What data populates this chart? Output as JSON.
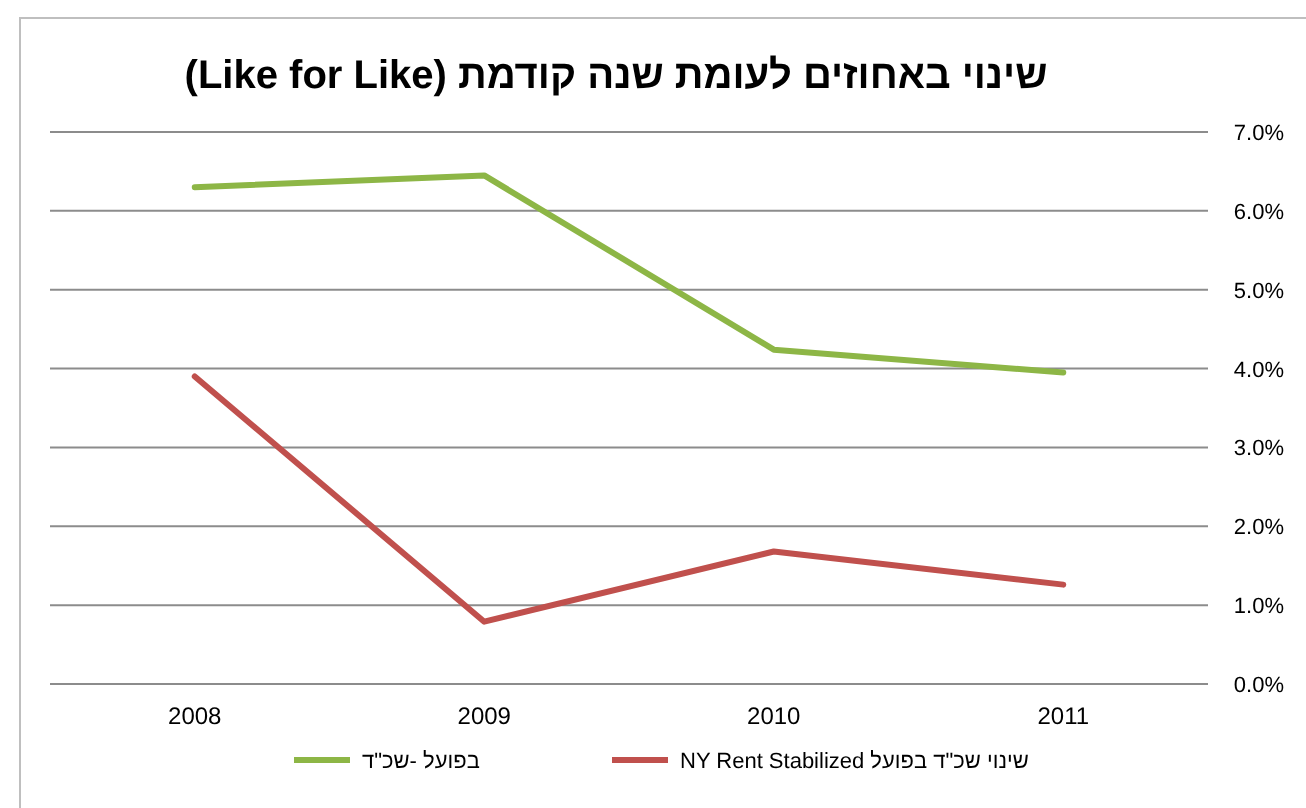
{
  "chart_data": {
    "type": "line",
    "title": "שינוי באחוזים לעומת שנה קודמת (Like for Like)",
    "categories": [
      "2008",
      "2009",
      "2010",
      "2011"
    ],
    "series": [
      {
        "name": "בפועל -שכ\"ד",
        "color": "#8db646",
        "values": [
          6.3,
          6.45,
          4.24,
          3.95
        ]
      },
      {
        "name": "שינוי שכ\"ד בפועל NY Rent Stabilized",
        "color": "#c0504d",
        "values": [
          3.9,
          0.79,
          1.68,
          1.26
        ]
      }
    ],
    "ylim": [
      0,
      7
    ],
    "yticks": [
      {
        "value": 0,
        "label": "0.0%"
      },
      {
        "value": 1,
        "label": "1.0%"
      },
      {
        "value": 2,
        "label": "2.0%"
      },
      {
        "value": 3,
        "label": "3.0%"
      },
      {
        "value": 4,
        "label": "4.0%"
      },
      {
        "value": 5,
        "label": "5.0%"
      },
      {
        "value": 6,
        "label": "6.0%"
      },
      {
        "value": 7,
        "label": "7.0%"
      }
    ],
    "grid": "y",
    "legend": "bottom",
    "marker": "none",
    "line_style": "solid"
  }
}
